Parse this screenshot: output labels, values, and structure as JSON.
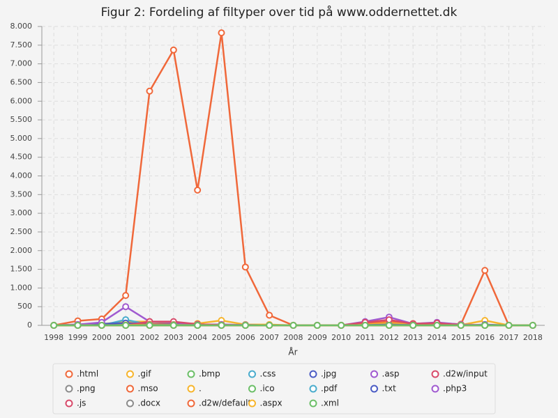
{
  "chart_data": {
    "type": "line",
    "title": "Figur 2: Fordeling af filtyper over tid på www.oddernettet.dk",
    "x_label": "År",
    "categories": [
      "1998",
      "1999",
      "2000",
      "2001",
      "2002",
      "2003",
      "2004",
      "2005",
      "2006",
      "2007",
      "2008",
      "2009",
      "2010",
      "2011",
      "2012",
      "2013",
      "2014",
      "2015",
      "2016",
      "2017",
      "2018"
    ],
    "ylim": [
      0,
      8000
    ],
    "yticks": [
      0,
      500,
      {
        "value": 1000,
        "label": "1.000"
      },
      {
        "value": 1500,
        "label": "1.500"
      },
      {
        "value": 2000,
        "label": "2.000"
      },
      {
        "value": 2500,
        "label": "2.500"
      },
      {
        "value": 3000,
        "label": "3.000"
      },
      {
        "value": 3500,
        "label": "3.500"
      },
      {
        "value": 4000,
        "label": "4.000"
      },
      {
        "value": 4500,
        "label": "4.500"
      },
      {
        "value": 5000,
        "label": "5.000"
      },
      {
        "value": 5500,
        "label": "5.500"
      },
      {
        "value": 6000,
        "label": "6.000"
      },
      {
        "value": 6500,
        "label": "6.500"
      },
      {
        "value": 7000,
        "label": "7.000"
      },
      {
        "value": 7500,
        "label": "7.500"
      },
      {
        "value": 8000,
        "label": "8.000"
      }
    ],
    "grid": true,
    "series": [
      {
        "name": ".html",
        "color": "#f0683a",
        "values": [
          0,
          120,
          170,
          800,
          6270,
          7370,
          3620,
          7830,
          1560,
          270,
          0,
          0,
          0,
          50,
          100,
          50,
          60,
          30,
          1470,
          0,
          0
        ]
      },
      {
        "name": ".gif",
        "color": "#f7b52c",
        "values": [
          0,
          10,
          30,
          100,
          100,
          50,
          50,
          130,
          20,
          20,
          0,
          0,
          0,
          20,
          60,
          20,
          20,
          10,
          130,
          0,
          0
        ]
      },
      {
        "name": ".bmp",
        "color": "#6cbf68",
        "values": [
          0,
          0,
          0,
          20,
          10,
          10,
          5,
          5,
          0,
          0,
          0,
          0,
          0,
          0,
          0,
          0,
          0,
          0,
          0,
          0,
          0
        ]
      },
      {
        "name": ".css",
        "color": "#4aaccd",
        "values": [
          0,
          0,
          0,
          150,
          20,
          10,
          10,
          10,
          0,
          0,
          0,
          0,
          0,
          0,
          0,
          0,
          0,
          0,
          0,
          0,
          0
        ]
      },
      {
        "name": ".jpg",
        "color": "#4b5cc4",
        "values": [
          0,
          20,
          40,
          60,
          40,
          30,
          20,
          20,
          10,
          0,
          0,
          0,
          0,
          10,
          20,
          10,
          10,
          0,
          20,
          0,
          0
        ]
      },
      {
        "name": ".asp",
        "color": "#a05ad0",
        "values": [
          0,
          20,
          80,
          500,
          100,
          80,
          20,
          20,
          10,
          0,
          0,
          0,
          0,
          100,
          220,
          40,
          80,
          20,
          10,
          0,
          0
        ]
      },
      {
        "name": ".d2w/input",
        "color": "#d84a6a",
        "values": [
          0,
          0,
          0,
          0,
          100,
          100,
          30,
          10,
          0,
          0,
          0,
          0,
          0,
          80,
          150,
          40,
          60,
          10,
          0,
          0,
          0
        ]
      },
      {
        "name": ".png",
        "color": "#8c8c8c",
        "values": [
          0,
          0,
          0,
          0,
          0,
          0,
          0,
          0,
          0,
          0,
          0,
          0,
          0,
          0,
          0,
          0,
          0,
          0,
          0,
          0,
          0
        ]
      },
      {
        "name": ".mso",
        "color": "#f0683a",
        "values": [
          0,
          0,
          0,
          0,
          30,
          20,
          0,
          0,
          0,
          0,
          0,
          0,
          0,
          0,
          0,
          0,
          0,
          0,
          0,
          0,
          0
        ]
      },
      {
        "name": ".",
        "color": "#f7b52c",
        "values": [
          0,
          0,
          0,
          10,
          10,
          10,
          0,
          0,
          0,
          0,
          0,
          0,
          0,
          0,
          0,
          0,
          0,
          0,
          0,
          0,
          0
        ]
      },
      {
        "name": ".ico",
        "color": "#6cbf68",
        "values": [
          0,
          0,
          0,
          0,
          0,
          0,
          0,
          0,
          0,
          0,
          0,
          0,
          0,
          0,
          0,
          0,
          0,
          0,
          0,
          0,
          0
        ]
      },
      {
        "name": ".pdf",
        "color": "#4aaccd",
        "values": [
          0,
          0,
          0,
          0,
          10,
          10,
          10,
          0,
          0,
          0,
          0,
          0,
          0,
          0,
          0,
          0,
          0,
          0,
          0,
          0,
          0
        ]
      },
      {
        "name": ".txt",
        "color": "#4b5cc4",
        "values": [
          0,
          0,
          0,
          0,
          0,
          0,
          0,
          0,
          0,
          0,
          0,
          0,
          0,
          0,
          0,
          0,
          0,
          0,
          0,
          0,
          0
        ]
      },
      {
        "name": ".php3",
        "color": "#a05ad0",
        "values": [
          0,
          0,
          0,
          0,
          0,
          0,
          0,
          0,
          0,
          0,
          0,
          0,
          0,
          0,
          0,
          0,
          0,
          0,
          0,
          0,
          0
        ]
      },
      {
        "name": ".js",
        "color": "#d84a6a",
        "values": [
          0,
          0,
          0,
          0,
          0,
          0,
          0,
          0,
          0,
          0,
          0,
          0,
          0,
          0,
          0,
          0,
          0,
          0,
          0,
          0,
          0
        ]
      },
      {
        "name": ".docx",
        "color": "#8c8c8c",
        "values": [
          0,
          0,
          0,
          0,
          0,
          0,
          0,
          0,
          0,
          0,
          0,
          0,
          0,
          0,
          0,
          0,
          0,
          0,
          0,
          0,
          0
        ]
      },
      {
        "name": ".d2w/default",
        "color": "#f0683a",
        "values": [
          0,
          0,
          0,
          0,
          0,
          0,
          0,
          0,
          0,
          0,
          0,
          0,
          0,
          0,
          0,
          0,
          0,
          0,
          0,
          0,
          0
        ]
      },
      {
        "name": ".aspx",
        "color": "#f7b52c",
        "values": [
          0,
          0,
          0,
          0,
          0,
          0,
          0,
          0,
          0,
          0,
          0,
          0,
          0,
          0,
          0,
          0,
          0,
          0,
          0,
          0,
          0
        ]
      },
      {
        "name": ".xml",
        "color": "#6cbf68",
        "values": [
          0,
          0,
          0,
          0,
          0,
          0,
          0,
          0,
          0,
          0,
          0,
          0,
          0,
          0,
          0,
          0,
          0,
          0,
          0,
          0,
          0
        ]
      }
    ]
  }
}
